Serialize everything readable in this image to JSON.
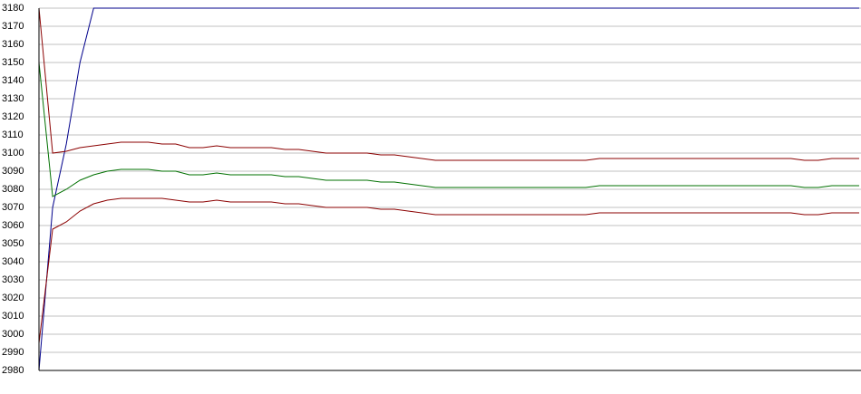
{
  "chart_data": {
    "type": "line",
    "ylim": [
      2980,
      3180
    ],
    "yticks": [
      2980,
      2990,
      3000,
      3010,
      3020,
      3030,
      3040,
      3050,
      3060,
      3070,
      3080,
      3090,
      3100,
      3110,
      3120,
      3130,
      3140,
      3150,
      3160,
      3170,
      3180
    ],
    "grid": true,
    "series": [
      {
        "color": "#00008b",
        "values": [
          2980,
          3070,
          3105,
          3150,
          3180,
          3180,
          3180,
          3180,
          3180,
          3180,
          3180,
          3180,
          3180,
          3180,
          3180,
          3180,
          3180,
          3180,
          3180,
          3180,
          3180,
          3180,
          3180,
          3180,
          3180,
          3180,
          3180,
          3180,
          3180,
          3180,
          3180,
          3180,
          3180,
          3180,
          3180,
          3180,
          3180,
          3180,
          3180,
          3180,
          3180,
          3180,
          3180,
          3180,
          3180,
          3180,
          3180,
          3180,
          3180,
          3180,
          3180,
          3180,
          3180,
          3180,
          3180,
          3180,
          3180,
          3180,
          3180,
          3180,
          3180
        ]
      },
      {
        "color": "#8b0000",
        "values": [
          3180,
          3100,
          3101,
          3103,
          3104,
          3105,
          3106,
          3106,
          3106,
          3105,
          3105,
          3103,
          3103,
          3104,
          3103,
          3103,
          3103,
          3103,
          3102,
          3102,
          3101,
          3100,
          3100,
          3100,
          3100,
          3099,
          3099,
          3098,
          3097,
          3096,
          3096,
          3096,
          3096,
          3096,
          3096,
          3096,
          3096,
          3096,
          3096,
          3096,
          3096,
          3097,
          3097,
          3097,
          3097,
          3097,
          3097,
          3097,
          3097,
          3097,
          3097,
          3097,
          3097,
          3097,
          3097,
          3097,
          3096,
          3096,
          3097,
          3097,
          3097
        ]
      },
      {
        "color": "#007000",
        "values": [
          3150,
          3076,
          3080,
          3085,
          3088,
          3090,
          3091,
          3091,
          3091,
          3090,
          3090,
          3088,
          3088,
          3089,
          3088,
          3088,
          3088,
          3088,
          3087,
          3087,
          3086,
          3085,
          3085,
          3085,
          3085,
          3084,
          3084,
          3083,
          3082,
          3081,
          3081,
          3081,
          3081,
          3081,
          3081,
          3081,
          3081,
          3081,
          3081,
          3081,
          3081,
          3082,
          3082,
          3082,
          3082,
          3082,
          3082,
          3082,
          3082,
          3082,
          3082,
          3082,
          3082,
          3082,
          3082,
          3082,
          3081,
          3081,
          3082,
          3082,
          3082
        ]
      },
      {
        "color": "#8b0000",
        "values": [
          2995,
          3058,
          3062,
          3068,
          3072,
          3074,
          3075,
          3075,
          3075,
          3075,
          3074,
          3073,
          3073,
          3074,
          3073,
          3073,
          3073,
          3073,
          3072,
          3072,
          3071,
          3070,
          3070,
          3070,
          3070,
          3069,
          3069,
          3068,
          3067,
          3066,
          3066,
          3066,
          3066,
          3066,
          3066,
          3066,
          3066,
          3066,
          3066,
          3066,
          3066,
          3067,
          3067,
          3067,
          3067,
          3067,
          3067,
          3067,
          3067,
          3067,
          3067,
          3067,
          3067,
          3067,
          3067,
          3067,
          3066,
          3066,
          3067,
          3067,
          3067
        ]
      }
    ]
  }
}
